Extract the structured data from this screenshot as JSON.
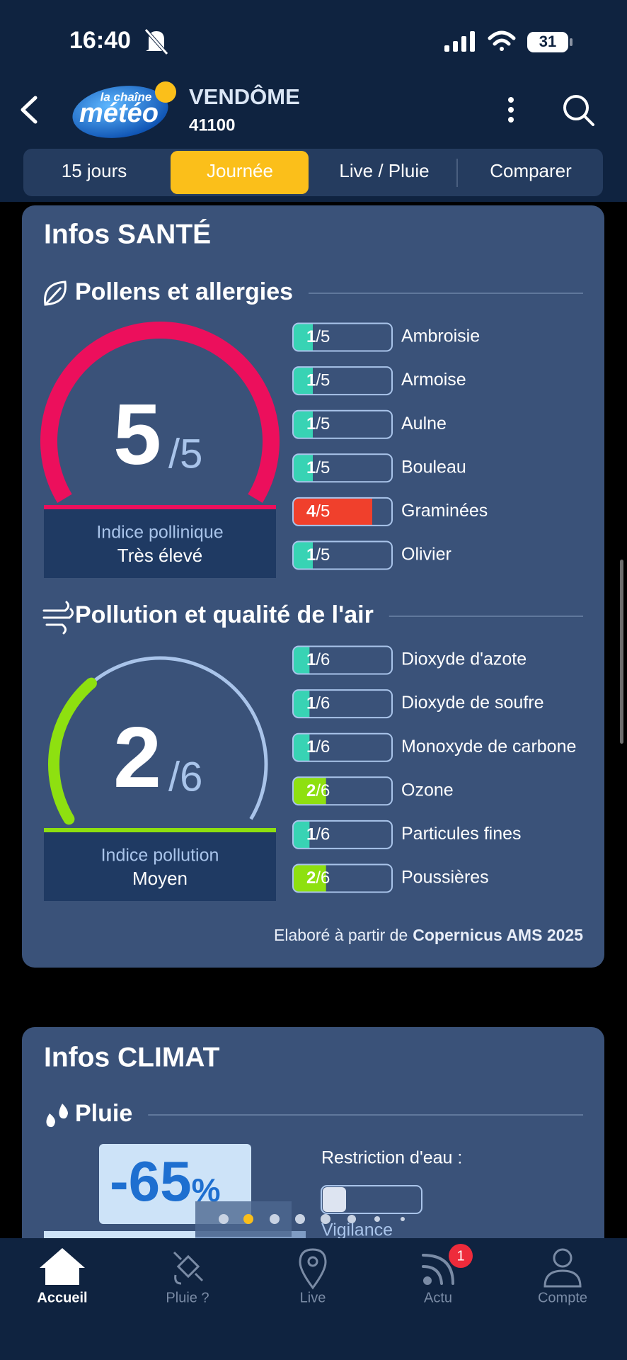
{
  "status_bar": {
    "time": "16:40",
    "battery": "31"
  },
  "header": {
    "logo_top": "la chaîne",
    "logo_bottom": "météo",
    "city": "VENDÔME",
    "postcode": "41100"
  },
  "tabs": [
    {
      "label": "15 jours",
      "active": false
    },
    {
      "label": "Journée",
      "active": true
    },
    {
      "label": "Live / Pluie",
      "active": false
    },
    {
      "label": "Comparer",
      "active": false
    }
  ],
  "health": {
    "title": "Infos SANTÉ",
    "pollen": {
      "title": "Pollens et allergies",
      "score": 5,
      "max": 5,
      "scale": "/5",
      "color": "#ec0f5c",
      "index_label": "Indice pollinique",
      "level": "Très élevé",
      "items": [
        {
          "score": 1,
          "name": "Ambroisie",
          "color": "#38d3b4"
        },
        {
          "score": 1,
          "name": "Armoise",
          "color": "#38d3b4"
        },
        {
          "score": 1,
          "name": "Aulne",
          "color": "#38d3b4"
        },
        {
          "score": 1,
          "name": "Bouleau",
          "color": "#38d3b4"
        },
        {
          "score": 4,
          "name": "Graminées",
          "color": "#f0402c"
        },
        {
          "score": 1,
          "name": "Olivier",
          "color": "#38d3b4"
        }
      ]
    },
    "pollution": {
      "title": "Pollution et qualité de l'air",
      "score": 2,
      "max": 6,
      "scale": "/6",
      "color": "#8ee010",
      "track_color": "#a9c4ea",
      "index_label": "Indice pollution",
      "level": "Moyen",
      "items": [
        {
          "score": 1,
          "name": "Dioxyde d'azote",
          "color": "#38d3b4"
        },
        {
          "score": 1,
          "name": "Dioxyde de soufre",
          "color": "#38d3b4"
        },
        {
          "score": 1,
          "name": "Monoxyde de carbone",
          "color": "#38d3b4"
        },
        {
          "score": 2,
          "name": "Ozone",
          "color": "#8ee010"
        },
        {
          "score": 1,
          "name": "Particules fines",
          "color": "#38d3b4"
        },
        {
          "score": 2,
          "name": "Poussières",
          "color": "#8ee010"
        }
      ]
    },
    "source": {
      "prefix": "Elaboré à partir de",
      "name": "Copernicus AMS 2025"
    }
  },
  "climate": {
    "title": "Infos CLIMAT",
    "rain": {
      "title": "Pluie",
      "value": -65,
      "unit": "%",
      "restriction": "Restriction d'eau :",
      "vigilance": "Vigilance"
    }
  },
  "nav": [
    {
      "label": "Accueil",
      "active": true
    },
    {
      "label": "Pluie ?",
      "active": false
    },
    {
      "label": "Live",
      "active": false
    },
    {
      "label": "Actu",
      "active": false,
      "badge": 1
    },
    {
      "label": "Compte",
      "active": false
    }
  ]
}
